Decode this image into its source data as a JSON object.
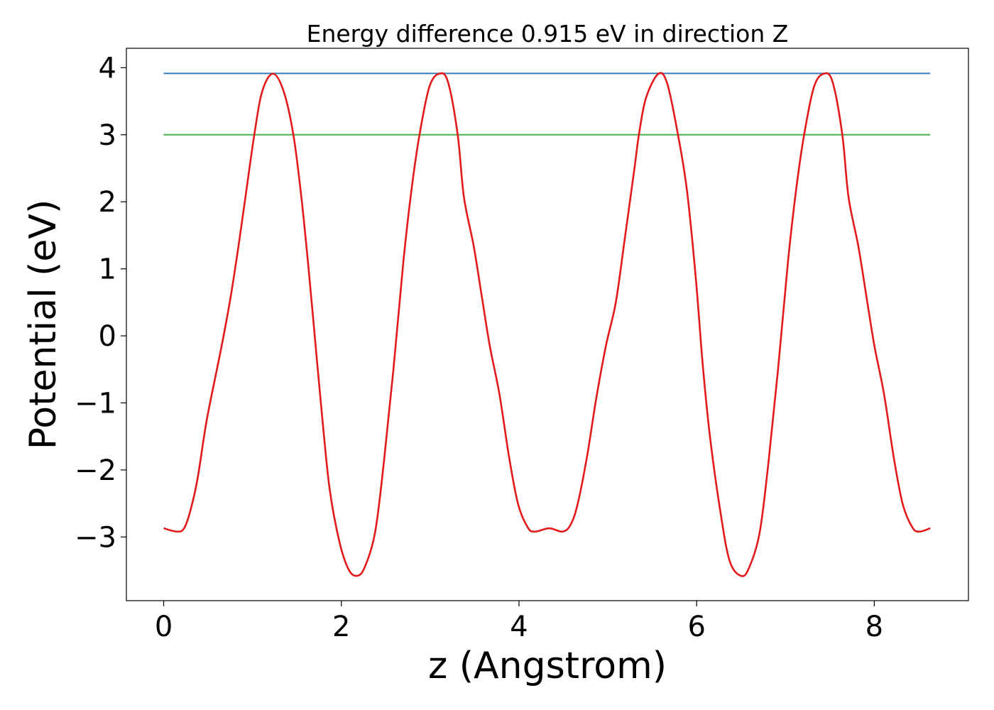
{
  "chart_data": {
    "type": "line",
    "title": "Energy difference 0.915 eV in direction Z",
    "xlabel": "z (Angstrom)",
    "ylabel": "Potential (eV)",
    "xlim": [
      -0.42,
      9.06
    ],
    "ylim": [
      -3.95,
      4.29
    ],
    "xticks": [
      0,
      2,
      4,
      6,
      8
    ],
    "xtick_labels": [
      "0",
      "2",
      "4",
      "6",
      "8"
    ],
    "yticks": [
      -3,
      -2,
      -1,
      0,
      1,
      2,
      3,
      4
    ],
    "ytick_labels": [
      "−3",
      "−2",
      "−1",
      "0",
      "1",
      "2",
      "3",
      "4"
    ],
    "grid": false,
    "series": [
      {
        "color": "#e31a1c",
        "x": [
          0,
          0.15,
          0.23,
          0.3,
          0.38,
          0.48,
          0.59,
          0.67,
          0.75,
          0.83,
          0.91,
          1.02,
          1.11,
          1.23,
          1.35,
          1.46,
          1.55,
          1.63,
          1.71,
          1.79,
          1.87,
          1.98,
          2.08,
          2.17,
          2.26,
          2.38,
          2.48,
          2.59,
          2.7,
          2.79,
          2.88,
          2.99,
          3.1,
          3.2,
          3.31,
          3.38,
          3.49,
          3.58,
          3.67,
          3.78,
          3.89,
          3.99,
          4.1,
          4.18,
          4.34,
          4.49,
          4.58,
          4.66,
          4.77,
          4.87,
          4.98,
          5.09,
          5.19,
          5.3,
          5.35,
          5.43,
          5.57,
          5.67,
          5.79,
          5.89,
          5.99,
          6.07,
          6.15,
          6.26,
          6.37,
          6.5,
          6.59,
          6.71,
          6.81,
          6.92,
          7.03,
          7.12,
          7.21,
          7.32,
          7.43,
          7.53,
          7.64,
          7.71,
          7.82,
          7.91,
          8.0,
          8.11,
          8.22,
          8.32,
          8.43,
          8.51,
          8.63
        ],
        "y": [
          -2.87,
          -2.92,
          -2.87,
          -2.61,
          -2.14,
          -1.29,
          -0.56,
          -0.03,
          0.55,
          1.23,
          1.97,
          3.0,
          3.65,
          3.91,
          3.65,
          3.0,
          2.07,
          1.02,
          -0.14,
          -1.29,
          -2.3,
          -3.08,
          -3.48,
          -3.58,
          -3.46,
          -2.93,
          -1.87,
          -0.45,
          1.13,
          2.18,
          3.0,
          3.71,
          3.91,
          3.79,
          3.0,
          2.07,
          1.34,
          0.6,
          -0.14,
          -0.87,
          -1.82,
          -2.51,
          -2.86,
          -2.92,
          -2.87,
          -2.92,
          -2.82,
          -2.51,
          -1.77,
          -0.93,
          -0.14,
          0.5,
          1.44,
          2.5,
          3.0,
          3.55,
          3.91,
          3.76,
          3.0,
          2.18,
          0.87,
          -0.45,
          -1.5,
          -2.56,
          -3.35,
          -3.58,
          -3.46,
          -2.93,
          -1.87,
          -0.45,
          1.13,
          2.18,
          3.0,
          3.71,
          3.91,
          3.79,
          3.0,
          2.07,
          1.34,
          0.6,
          -0.14,
          -0.87,
          -1.82,
          -2.51,
          -2.86,
          -2.92,
          -2.87
        ]
      },
      {
        "color": "#377eb8",
        "x": [
          0,
          8.63
        ],
        "y": [
          3.915,
          3.915
        ]
      },
      {
        "color": "#4daf4a",
        "x": [
          0,
          8.63
        ],
        "y": [
          3.0,
          3.0
        ]
      }
    ]
  }
}
